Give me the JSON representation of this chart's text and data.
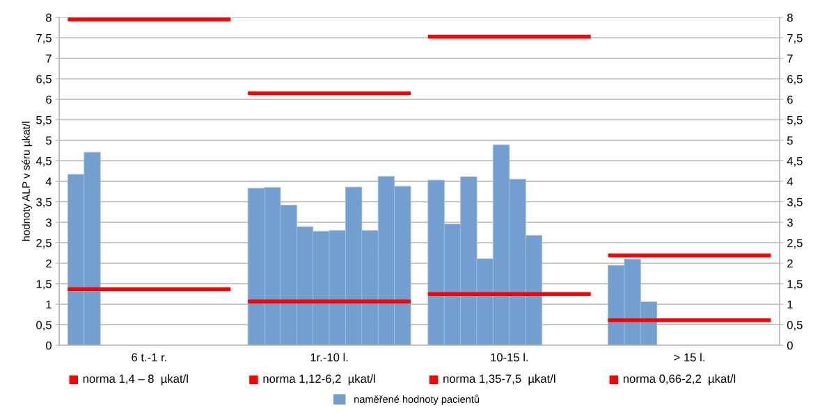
{
  "chart_data": {
    "type": "bar",
    "ylabel": "hodnoty ALP v séru µkat/l",
    "categories": [
      "6 t.-1 r.",
      "1r.-10 l.",
      "10-15 l.",
      "> 15 l."
    ],
    "series": [
      {
        "name": "naměřené hodnoty pacientů",
        "color": "#729fcf",
        "values": [
          4.17,
          3.83,
          4.03,
          1.95
        ]
      },
      {
        "color": "#729fcf",
        "values": [
          4.71,
          3.85,
          2.96,
          2.1
        ]
      },
      {
        "color": "#729fcf",
        "values": [
          null,
          3.42,
          4.11,
          1.06
        ]
      },
      {
        "color": "#729fcf",
        "values": [
          null,
          2.89,
          2.11,
          null
        ]
      },
      {
        "color": "#729fcf",
        "values": [
          null,
          2.78,
          4.89,
          null
        ]
      },
      {
        "color": "#729fcf",
        "values": [
          null,
          2.8,
          4.05,
          null
        ]
      },
      {
        "color": "#729fcf",
        "values": [
          null,
          3.86,
          2.68,
          null
        ]
      },
      {
        "color": "#729fcf",
        "values": [
          null,
          2.8,
          null,
          null
        ]
      },
      {
        "color": "#729fcf",
        "values": [
          null,
          4.12,
          null,
          null
        ]
      },
      {
        "color": "#729fcf",
        "values": [
          null,
          3.88,
          null,
          null
        ]
      }
    ],
    "ref_lines": [
      {
        "axis": "y",
        "value": 1.37,
        "label": "norma 1,4 – 8  µkat/l",
        "color": "#ff0000"
      },
      {
        "axis": "y",
        "value": 7.95,
        "color": "#ff0000"
      },
      {
        "axis": "y",
        "value": 1.07,
        "label": "norma 1,12-6,2  µkat/l",
        "color": "#ff0000"
      },
      {
        "axis": "y",
        "value": 6.15,
        "color": "#ff0000"
      },
      {
        "axis": "y",
        "value": 1.25,
        "label": "norma 1,35-7,5  µkat/l",
        "color": "#ff0000"
      },
      {
        "axis": "y",
        "value": 7.53,
        "color": "#ff0000"
      },
      {
        "axis": "y",
        "value": 0.61,
        "label": "norma 0,66-2,2  µkat/l",
        "color": "#ff0000"
      },
      {
        "axis": "y",
        "value": 2.19,
        "color": "#ff0000"
      }
    ],
    "ylim": [
      0,
      8
    ],
    "yticks": [
      0,
      {
        "value": 0.5,
        "label": "0,5"
      },
      1,
      {
        "value": 1.5,
        "label": "1,5"
      },
      2,
      {
        "value": 2.5,
        "label": "2,5"
      },
      3,
      {
        "value": 3.5,
        "label": "3,5"
      },
      4,
      {
        "value": 4.5,
        "label": "4,5"
      },
      5,
      {
        "value": 5.5,
        "label": "5,5"
      },
      6,
      {
        "value": 6.5,
        "label": "6,5"
      },
      7,
      {
        "value": 7.5,
        "label": "7,5"
      },
      8
    ],
    "y2lim": [
      0,
      8
    ],
    "y2ticks": [
      0,
      {
        "value": 0.5,
        "label": "0,5"
      },
      1,
      {
        "value": 1.5,
        "label": "1,5"
      },
      2,
      {
        "value": 2.5,
        "label": "2,5"
      },
      3,
      {
        "value": 3.5,
        "label": "3,5"
      },
      4,
      {
        "value": 4.5,
        "label": "4,5"
      },
      5,
      {
        "value": 5.5,
        "label": "5,5"
      },
      6,
      {
        "value": 6.5,
        "label": "6,5"
      },
      7,
      {
        "value": 7.5,
        "label": "7,5"
      },
      8
    ],
    "grid": "y",
    "legend": "bottom",
    "line_style": "solid"
  }
}
